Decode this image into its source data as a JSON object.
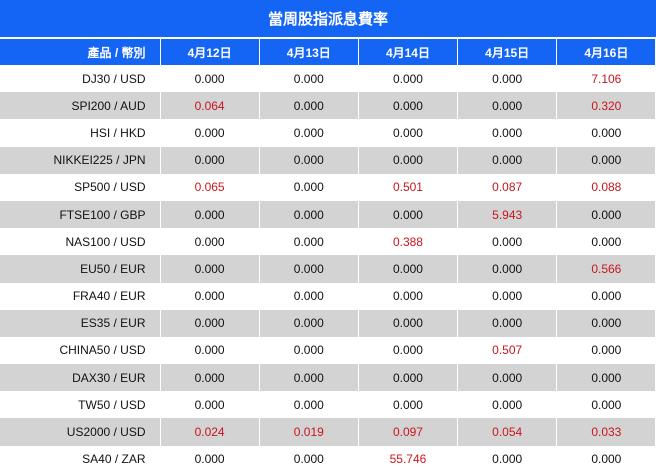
{
  "title": "當周股指派息費率",
  "header": {
    "product_label": "產品 / 幣別",
    "dates": [
      "4月12日",
      "4月13日",
      "4月14日",
      "4月15日",
      "4月16日"
    ]
  },
  "colors": {
    "accent": "#1565F5",
    "highlight": "#C8161D",
    "row_alt": "#D3D3D3"
  },
  "rows": [
    {
      "product": "DJ30 / USD",
      "values": [
        "0.000",
        "0.000",
        "0.000",
        "0.000",
        "7.106"
      ],
      "highlight": [
        false,
        false,
        false,
        false,
        true
      ]
    },
    {
      "product": "SPI200 / AUD",
      "values": [
        "0.064",
        "0.000",
        "0.000",
        "0.000",
        "0.320"
      ],
      "highlight": [
        true,
        false,
        false,
        false,
        true
      ]
    },
    {
      "product": "HSI / HKD",
      "values": [
        "0.000",
        "0.000",
        "0.000",
        "0.000",
        "0.000"
      ],
      "highlight": [
        false,
        false,
        false,
        false,
        false
      ]
    },
    {
      "product": "NIKKEI225 / JPN",
      "values": [
        "0.000",
        "0.000",
        "0.000",
        "0.000",
        "0.000"
      ],
      "highlight": [
        false,
        false,
        false,
        false,
        false
      ]
    },
    {
      "product": "SP500 / USD",
      "values": [
        "0.065",
        "0.000",
        "0.501",
        "0.087",
        "0.088"
      ],
      "highlight": [
        true,
        false,
        true,
        true,
        true
      ]
    },
    {
      "product": "FTSE100 / GBP",
      "values": [
        "0.000",
        "0.000",
        "0.000",
        "5.943",
        "0.000"
      ],
      "highlight": [
        false,
        false,
        false,
        true,
        false
      ]
    },
    {
      "product": "NAS100 / USD",
      "values": [
        "0.000",
        "0.000",
        "0.388",
        "0.000",
        "0.000"
      ],
      "highlight": [
        false,
        false,
        true,
        false,
        false
      ]
    },
    {
      "product": "EU50 / EUR",
      "values": [
        "0.000",
        "0.000",
        "0.000",
        "0.000",
        "0.566"
      ],
      "highlight": [
        false,
        false,
        false,
        false,
        true
      ]
    },
    {
      "product": "FRA40 / EUR",
      "values": [
        "0.000",
        "0.000",
        "0.000",
        "0.000",
        "0.000"
      ],
      "highlight": [
        false,
        false,
        false,
        false,
        false
      ]
    },
    {
      "product": "ES35 / EUR",
      "values": [
        "0.000",
        "0.000",
        "0.000",
        "0.000",
        "0.000"
      ],
      "highlight": [
        false,
        false,
        false,
        false,
        false
      ]
    },
    {
      "product": "CHINA50 / USD",
      "values": [
        "0.000",
        "0.000",
        "0.000",
        "0.507",
        "0.000"
      ],
      "highlight": [
        false,
        false,
        false,
        true,
        false
      ]
    },
    {
      "product": "DAX30 / EUR",
      "values": [
        "0.000",
        "0.000",
        "0.000",
        "0.000",
        "0.000"
      ],
      "highlight": [
        false,
        false,
        false,
        false,
        false
      ]
    },
    {
      "product": "TW50 / USD",
      "values": [
        "0.000",
        "0.000",
        "0.000",
        "0.000",
        "0.000"
      ],
      "highlight": [
        false,
        false,
        false,
        false,
        false
      ]
    },
    {
      "product": "US2000 / USD",
      "values": [
        "0.024",
        "0.019",
        "0.097",
        "0.054",
        "0.033"
      ],
      "highlight": [
        true,
        true,
        true,
        true,
        true
      ]
    },
    {
      "product": "SA40 / ZAR",
      "values": [
        "0.000",
        "0.000",
        "55.746",
        "0.000",
        "0.000"
      ],
      "highlight": [
        false,
        false,
        true,
        false,
        false
      ]
    }
  ]
}
